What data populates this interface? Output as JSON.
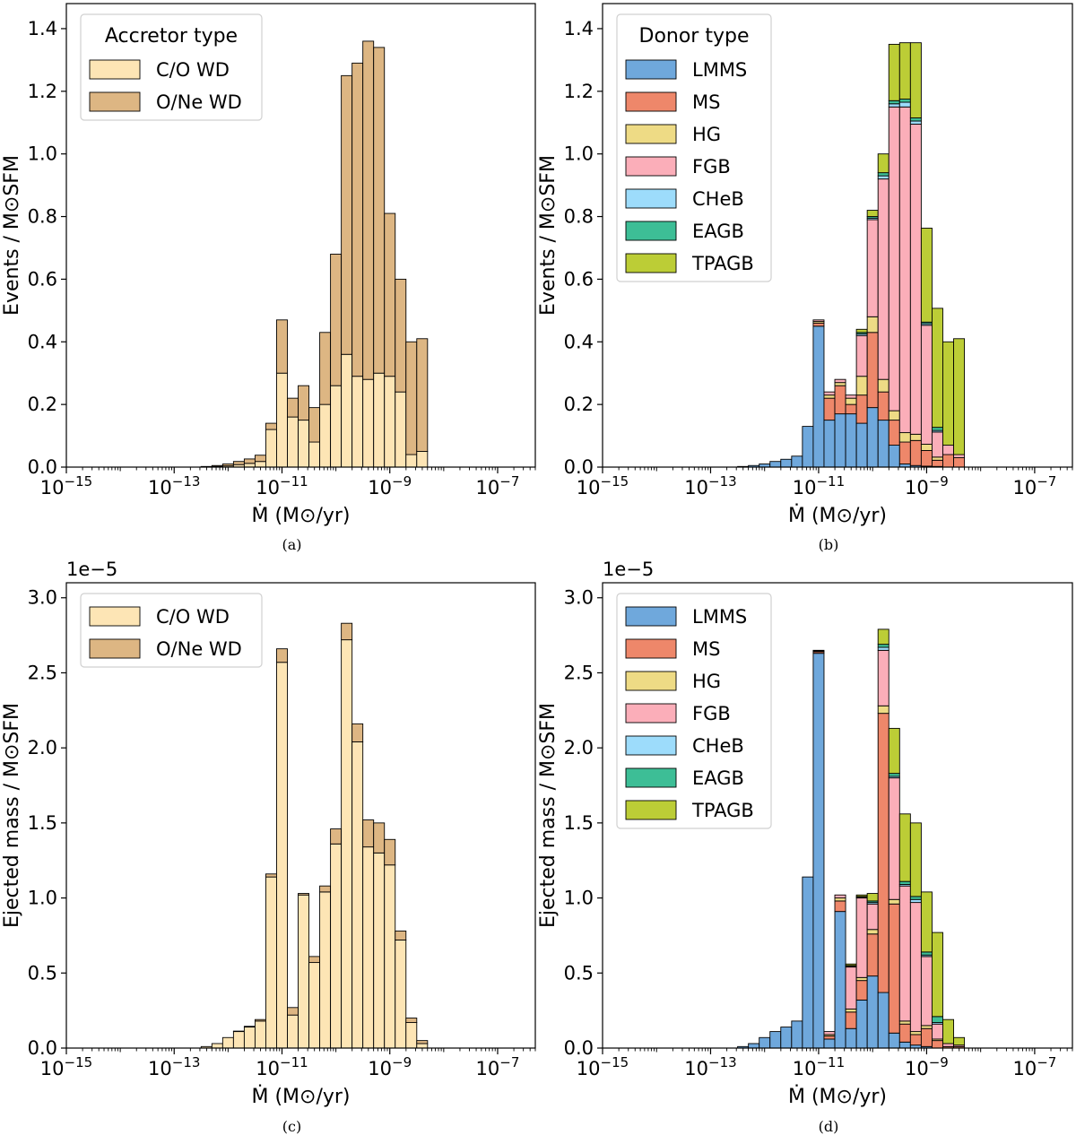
{
  "colors": {
    "C/O WD": "#fde5b5",
    "O/Ne WD": "#ddb683",
    "LMMS": "#6fa8dc",
    "MS": "#ee876a",
    "HG": "#eedb85",
    "FGB": "#fbaeb9",
    "CHeB": "#9ddcfb",
    "EAGB": "#3dbe96",
    "TPAGB": "#bccd36"
  },
  "chart_data": [
    {
      "type": "bar",
      "stacked": true,
      "panel": "a",
      "caption": "(a)",
      "xlabel": "Ṁ (M⊙/yr)",
      "ylabel": "Events / M⊙SFM",
      "xscale": "log",
      "xlim": [
        1e-15,
        5e-07
      ],
      "ylim": [
        0,
        1.48
      ],
      "yticks": [
        "0.0",
        "0.2",
        "0.4",
        "0.6",
        "0.8",
        "1.0",
        "1.2",
        "1.4"
      ],
      "xticks": [
        "10−15",
        "10−13",
        "10−11",
        "10−9",
        "10−7"
      ],
      "legend": {
        "title": "Accretor type",
        "position": "top-left"
      },
      "bin_edges_log10": [
        -12.5,
        -12.3,
        -12.1,
        -11.9,
        -11.7,
        -11.5,
        -11.3,
        -11.1,
        -10.9,
        -10.7,
        -10.5,
        -10.3,
        -10.1,
        -9.9,
        -9.7,
        -9.5,
        -9.3,
        -9.1,
        -8.9,
        -8.7,
        -8.5,
        -8.3,
        -8.1,
        -7.9,
        -7.7,
        -7.5,
        -7.3
      ],
      "series": [
        {
          "name": "C/O WD",
          "values": [
            0.001,
            0.002,
            0.004,
            0.008,
            0.012,
            0.018,
            0.12,
            0.3,
            0.16,
            0.15,
            0.08,
            0.2,
            0.26,
            0.36,
            0.29,
            0.28,
            0.3,
            0.29,
            0.24,
            0.04,
            0.05,
            0,
            0,
            0,
            0,
            0
          ]
        },
        {
          "name": "O/Ne WD",
          "values": [
            0.001,
            0.003,
            0.006,
            0.01,
            0.014,
            0.02,
            0.02,
            0.17,
            0.06,
            0.11,
            0.11,
            0.23,
            0.42,
            0.89,
            1.0,
            1.08,
            1.04,
            0.52,
            0.36,
            0.36,
            0.36,
            0,
            0,
            0,
            0,
            0
          ]
        }
      ]
    },
    {
      "type": "bar",
      "stacked": true,
      "panel": "b",
      "caption": "(b)",
      "xlabel": "Ṁ (M⊙/yr)",
      "ylabel": "Events / M⊙SFM",
      "xscale": "log",
      "xlim": [
        1e-15,
        5e-07
      ],
      "ylim": [
        0,
        1.48
      ],
      "yticks": [
        "0.0",
        "0.2",
        "0.4",
        "0.6",
        "0.8",
        "1.0",
        "1.2",
        "1.4"
      ],
      "xticks": [
        "10−15",
        "10−13",
        "10−11",
        "10−9",
        "10−7"
      ],
      "legend": {
        "title": "Donor type",
        "position": "top-left"
      },
      "bin_edges_log10": [
        -12.5,
        -12.3,
        -12.1,
        -11.9,
        -11.7,
        -11.5,
        -11.3,
        -11.1,
        -10.9,
        -10.7,
        -10.5,
        -10.3,
        -10.1,
        -9.9,
        -9.7,
        -9.5,
        -9.3,
        -9.1,
        -8.9,
        -8.7,
        -8.5,
        -8.3,
        -8.1,
        -7.9,
        -7.7,
        -7.5,
        -7.3
      ],
      "series": [
        {
          "name": "LMMS",
          "values": [
            0.002,
            0.005,
            0.01,
            0.018,
            0.025,
            0.035,
            0.13,
            0.45,
            0.15,
            0.17,
            0.17,
            0.14,
            0.19,
            0.15,
            0.07,
            0.01,
            0.005,
            0.003,
            0.002,
            0,
            0,
            0,
            0,
            0,
            0,
            0
          ]
        },
        {
          "name": "MS",
          "values": [
            0,
            0,
            0,
            0,
            0,
            0,
            0,
            0.01,
            0.07,
            0.09,
            0.03,
            0.09,
            0.24,
            0.09,
            0.08,
            0.07,
            0.08,
            0.05,
            0.02,
            0.04,
            0.03,
            0,
            0,
            0,
            0,
            0
          ]
        },
        {
          "name": "HG",
          "values": [
            0,
            0,
            0,
            0,
            0,
            0,
            0,
            0.005,
            0.01,
            0.01,
            0.02,
            0.06,
            0.05,
            0.04,
            0.03,
            0.03,
            0.02,
            0.02,
            0.01,
            0,
            0,
            0,
            0,
            0,
            0,
            0
          ]
        },
        {
          "name": "FGB",
          "values": [
            0,
            0,
            0,
            0,
            0,
            0,
            0,
            0.005,
            0.01,
            0.01,
            0.01,
            0.13,
            0.31,
            0.64,
            0.97,
            1.04,
            0.99,
            0.38,
            0.08,
            0.03,
            0.01,
            0,
            0,
            0,
            0,
            0
          ]
        },
        {
          "name": "CHeB",
          "values": [
            0,
            0,
            0,
            0,
            0,
            0,
            0,
            0,
            0,
            0,
            0,
            0.005,
            0.005,
            0.01,
            0.01,
            0.015,
            0.01,
            0.005,
            0.005,
            0,
            0,
            0,
            0,
            0,
            0,
            0
          ]
        },
        {
          "name": "EAGB",
          "values": [
            0,
            0,
            0,
            0,
            0,
            0,
            0,
            0,
            0,
            0,
            0,
            0.005,
            0.005,
            0.01,
            0.01,
            0.01,
            0.01,
            0.005,
            0.01,
            0,
            0,
            0,
            0,
            0,
            0,
            0
          ]
        },
        {
          "name": "TPAGB",
          "values": [
            0,
            0,
            0,
            0,
            0,
            0,
            0,
            0,
            0,
            0,
            0,
            0.01,
            0.02,
            0.06,
            0.18,
            0.18,
            0.24,
            0.3,
            0.38,
            0.33,
            0.37,
            0,
            0,
            0,
            0,
            0
          ]
        }
      ]
    },
    {
      "type": "bar",
      "stacked": true,
      "panel": "c",
      "caption": "(c)",
      "xlabel": "Ṁ (M⊙/yr)",
      "ylabel": "Ejected mass / M⊙SFM",
      "offset_text": "1e−5",
      "xscale": "log",
      "xlim": [
        1e-15,
        5e-07
      ],
      "ylim": [
        0,
        3.1
      ],
      "yticks": [
        "0.0",
        "0.5",
        "1.0",
        "1.5",
        "2.0",
        "2.5",
        "3.0"
      ],
      "xticks": [
        "10−15",
        "10−13",
        "10−11",
        "10−9",
        "10−7"
      ],
      "legend": {
        "title": "",
        "position": "top-left"
      },
      "bin_edges_log10": [
        -12.5,
        -12.3,
        -12.1,
        -11.9,
        -11.7,
        -11.5,
        -11.3,
        -11.1,
        -10.9,
        -10.7,
        -10.5,
        -10.3,
        -10.1,
        -9.9,
        -9.7,
        -9.5,
        -9.3,
        -9.1,
        -8.9,
        -8.7,
        -8.5,
        -8.3,
        -8.1,
        -7.9,
        -7.7,
        -7.5,
        -7.3
      ],
      "series": [
        {
          "name": "C/O WD",
          "values": [
            0.01,
            0.03,
            0.07,
            0.11,
            0.14,
            0.18,
            1.14,
            2.57,
            0.22,
            1.02,
            0.57,
            1.04,
            1.36,
            2.72,
            2.04,
            1.34,
            1.3,
            1.22,
            0.72,
            0.17,
            0.03,
            0,
            0,
            0,
            0,
            0
          ]
        },
        {
          "name": "O/Ne WD",
          "values": [
            0,
            0,
            0,
            0.003,
            0.005,
            0.01,
            0.02,
            0.09,
            0.05,
            0.01,
            0.04,
            0.04,
            0.1,
            0.11,
            0.12,
            0.18,
            0.2,
            0.17,
            0.06,
            0.03,
            0.02,
            0,
            0,
            0,
            0,
            0
          ]
        }
      ]
    },
    {
      "type": "bar",
      "stacked": true,
      "panel": "d",
      "caption": "(d)",
      "xlabel": "Ṁ (M⊙/yr)",
      "ylabel": "Ejected mass / M⊙SFM",
      "offset_text": "1e−5",
      "xscale": "log",
      "xlim": [
        1e-15,
        5e-07
      ],
      "ylim": [
        0,
        3.1
      ],
      "yticks": [
        "0.0",
        "0.5",
        "1.0",
        "1.5",
        "2.0",
        "2.5",
        "3.0"
      ],
      "xticks": [
        "10−15",
        "10−13",
        "10−11",
        "10−9",
        "10−7"
      ],
      "legend": {
        "title": "",
        "position": "top-left"
      },
      "bin_edges_log10": [
        -12.5,
        -12.3,
        -12.1,
        -11.9,
        -11.7,
        -11.5,
        -11.3,
        -11.1,
        -10.9,
        -10.7,
        -10.5,
        -10.3,
        -10.1,
        -9.9,
        -9.7,
        -9.5,
        -9.3,
        -9.1,
        -8.9,
        -8.7,
        -8.5,
        -8.3,
        -8.1,
        -7.9,
        -7.7,
        -7.5,
        -7.3
      ],
      "series": [
        {
          "name": "LMMS",
          "values": [
            0.01,
            0.03,
            0.07,
            0.11,
            0.14,
            0.18,
            1.14,
            2.63,
            0.06,
            0.91,
            0.13,
            0.32,
            0.48,
            0.37,
            0.1,
            0.04,
            0.02,
            0.01,
            0,
            0,
            0,
            0,
            0,
            0,
            0,
            0
          ]
        },
        {
          "name": "MS",
          "values": [
            0,
            0,
            0,
            0,
            0,
            0,
            0,
            0.01,
            0.02,
            0.07,
            0.11,
            0.13,
            0.28,
            1.86,
            0.86,
            0.12,
            0.07,
            0.12,
            0.05,
            0.01,
            0.01,
            0,
            0,
            0,
            0,
            0
          ]
        },
        {
          "name": "HG",
          "values": [
            0,
            0,
            0,
            0,
            0,
            0,
            0,
            0.005,
            0.01,
            0.02,
            0.02,
            0.02,
            0.03,
            0.05,
            0.03,
            0.02,
            0.02,
            0.02,
            0.01,
            0,
            0,
            0,
            0,
            0,
            0,
            0
          ]
        },
        {
          "name": "FGB",
          "values": [
            0,
            0,
            0,
            0,
            0,
            0,
            0,
            0.005,
            0.02,
            0.02,
            0.28,
            0.53,
            0.17,
            0.37,
            0.81,
            0.9,
            0.86,
            0.46,
            0.1,
            0.02,
            0.01,
            0,
            0,
            0,
            0,
            0
          ]
        },
        {
          "name": "CHeB",
          "values": [
            0,
            0,
            0,
            0,
            0,
            0,
            0,
            0,
            0,
            0,
            0.005,
            0.005,
            0.01,
            0.02,
            0.01,
            0.01,
            0.02,
            0.01,
            0.01,
            0,
            0,
            0,
            0,
            0,
            0,
            0
          ]
        },
        {
          "name": "EAGB",
          "values": [
            0,
            0,
            0,
            0,
            0,
            0,
            0,
            0,
            0,
            0,
            0.005,
            0.005,
            0.01,
            0.02,
            0.02,
            0.02,
            0.02,
            0.02,
            0.04,
            0,
            0,
            0,
            0,
            0,
            0,
            0
          ]
        },
        {
          "name": "TPAGB",
          "values": [
            0,
            0,
            0,
            0,
            0,
            0,
            0,
            0,
            0,
            0,
            0.01,
            0.01,
            0.05,
            0.1,
            0.3,
            0.45,
            0.49,
            0.4,
            0.56,
            0.16,
            0.05,
            0,
            0,
            0,
            0,
            0
          ]
        }
      ]
    }
  ]
}
